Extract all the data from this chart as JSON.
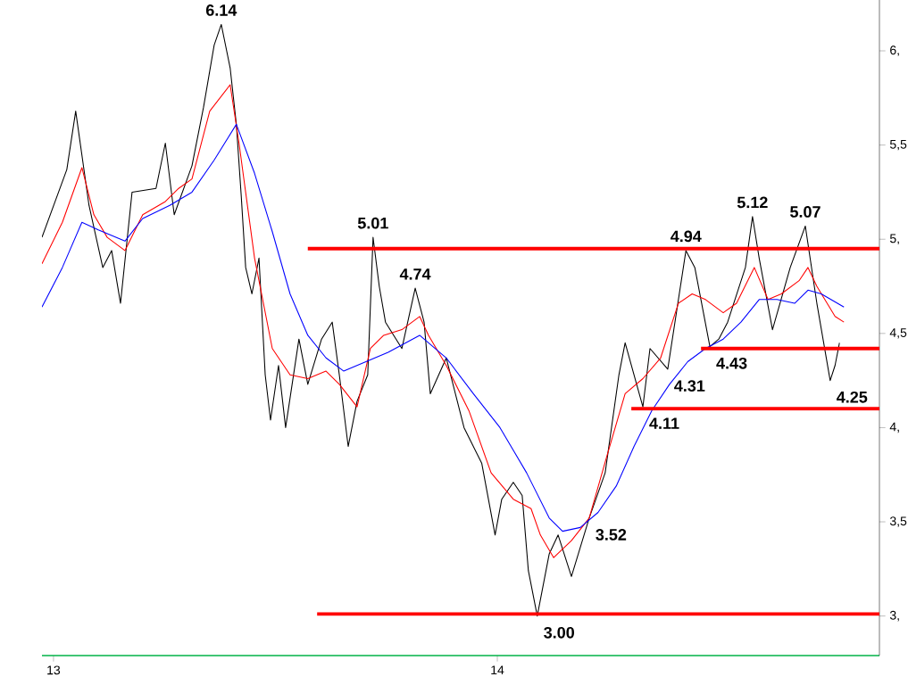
{
  "chart_data": {
    "type": "line",
    "xlim": [
      12.974,
      14.861
    ],
    "ylim": [
      2.79,
      6.27
    ],
    "xticks": [
      13,
      14
    ],
    "yticks": [
      {
        "value": 3,
        "label": "3,"
      },
      {
        "value": 3.5,
        "label": "3,5"
      },
      {
        "value": 4,
        "label": "4,"
      },
      {
        "value": 4.5,
        "label": "4,5"
      },
      {
        "value": 5,
        "label": "5,"
      },
      {
        "value": 5.5,
        "label": "5,5"
      },
      {
        "value": 6,
        "label": "6,"
      }
    ],
    "grid": false,
    "marker": "none",
    "line_style": "solid",
    "series": [
      {
        "color": "#000000",
        "x": [
          12.974,
          13.03,
          13.05,
          13.08,
          13.111,
          13.131,
          13.151,
          13.177,
          13.231,
          13.252,
          13.272,
          13.312,
          13.338,
          13.362,
          13.378,
          13.398,
          13.412,
          13.423,
          13.433,
          13.447,
          13.463,
          13.477,
          13.489,
          13.507,
          13.523,
          13.553,
          13.573,
          13.604,
          13.628,
          13.644,
          13.664,
          13.684,
          13.708,
          13.72,
          13.734,
          13.748,
          13.785,
          13.815,
          13.835,
          13.849,
          13.885,
          13.925,
          13.965,
          13.995,
          14.01,
          14.036,
          14.056,
          14.07,
          14.09,
          14.117,
          14.137,
          14.167,
          14.207,
          14.243,
          14.274,
          14.288,
          14.328,
          14.344,
          14.384,
          14.425,
          14.445,
          14.479,
          14.499,
          14.519,
          14.559,
          14.575,
          14.59,
          14.62,
          14.66,
          14.694,
          14.72,
          14.75,
          14.761,
          14.771
        ],
        "values": [
          5.01,
          5.37,
          5.68,
          5.18,
          4.85,
          4.94,
          4.66,
          5.25,
          5.27,
          5.51,
          5.13,
          5.39,
          5.7,
          6.03,
          6.14,
          5.91,
          5.61,
          5.23,
          4.85,
          4.71,
          4.9,
          4.28,
          4.04,
          4.33,
          4.0,
          4.47,
          4.23,
          4.47,
          4.56,
          4.28,
          3.9,
          4.14,
          4.28,
          5.01,
          4.75,
          4.56,
          4.42,
          4.74,
          4.56,
          4.18,
          4.37,
          4.0,
          3.81,
          3.43,
          3.62,
          3.71,
          3.64,
          3.24,
          3.0,
          3.33,
          3.43,
          3.21,
          3.52,
          3.76,
          4.28,
          4.45,
          4.11,
          4.42,
          4.31,
          4.94,
          4.85,
          4.43,
          4.47,
          4.56,
          4.85,
          5.12,
          4.9,
          4.52,
          4.85,
          5.07,
          4.66,
          4.25,
          4.33,
          4.45
        ]
      },
      {
        "color": "#ff0000",
        "x": [
          12.974,
          13.02,
          13.064,
          13.091,
          13.121,
          13.161,
          13.201,
          13.252,
          13.282,
          13.312,
          13.352,
          13.398,
          13.418,
          13.453,
          13.493,
          13.533,
          13.573,
          13.614,
          13.644,
          13.684,
          13.714,
          13.744,
          13.785,
          13.825,
          13.845,
          13.885,
          13.936,
          13.986,
          14.036,
          14.076,
          14.097,
          14.127,
          14.167,
          14.207,
          14.247,
          14.288,
          14.328,
          14.368,
          14.408,
          14.439,
          14.469,
          14.509,
          14.539,
          14.579,
          14.61,
          14.64,
          14.68,
          14.7,
          14.72,
          14.761,
          14.781
        ],
        "values": [
          4.87,
          5.09,
          5.38,
          5.13,
          5.01,
          4.94,
          5.13,
          5.2,
          5.27,
          5.32,
          5.68,
          5.82,
          5.51,
          4.9,
          4.42,
          4.28,
          4.26,
          4.3,
          4.23,
          4.11,
          4.42,
          4.49,
          4.52,
          4.59,
          4.49,
          4.33,
          4.09,
          3.76,
          3.62,
          3.57,
          3.43,
          3.31,
          3.4,
          3.52,
          3.85,
          4.18,
          4.26,
          4.37,
          4.66,
          4.71,
          4.68,
          4.61,
          4.66,
          4.85,
          4.68,
          4.71,
          4.78,
          4.85,
          4.75,
          4.59,
          4.56
        ]
      },
      {
        "color": "#0000ff",
        "x": [
          12.974,
          13.02,
          13.064,
          13.101,
          13.161,
          13.201,
          13.262,
          13.312,
          13.362,
          13.412,
          13.453,
          13.493,
          13.533,
          13.573,
          13.614,
          13.654,
          13.704,
          13.754,
          13.825,
          13.885,
          13.946,
          14.006,
          14.066,
          14.117,
          14.147,
          14.187,
          14.227,
          14.268,
          14.308,
          14.348,
          14.388,
          14.429,
          14.469,
          14.509,
          14.549,
          14.59,
          14.63,
          14.67,
          14.7,
          14.73,
          14.781
        ],
        "values": [
          4.64,
          4.85,
          5.09,
          5.05,
          4.99,
          5.11,
          5.18,
          5.25,
          5.42,
          5.61,
          5.35,
          5.04,
          4.71,
          4.49,
          4.37,
          4.3,
          4.35,
          4.4,
          4.49,
          4.37,
          4.18,
          4.0,
          3.76,
          3.52,
          3.45,
          3.47,
          3.55,
          3.69,
          3.9,
          4.09,
          4.23,
          4.35,
          4.42,
          4.47,
          4.56,
          4.68,
          4.68,
          4.66,
          4.73,
          4.71,
          4.64
        ]
      },
      {
        "color": "#ff0000",
        "x": [
          13.573,
          14.861
        ],
        "values": [
          4.95,
          4.95
        ]
      },
      {
        "color": "#ff0000",
        "x": [
          14.459,
          14.861
        ],
        "values": [
          4.42,
          4.42
        ]
      },
      {
        "color": "#ff0000",
        "x": [
          14.302,
          14.861
        ],
        "values": [
          4.1,
          4.1
        ]
      },
      {
        "color": "#ff0000",
        "x": [
          13.594,
          14.861
        ],
        "values": [
          3.01,
          3.01
        ]
      }
    ],
    "annotations": [
      {
        "text": "6.14",
        "x": 13.378,
        "y": 6.14
      },
      {
        "text": "5.01",
        "x": 13.72,
        "y": 5.01
      },
      {
        "text": "4.74",
        "x": 13.815,
        "y": 4.74
      },
      {
        "text": "4.94",
        "x": 14.425,
        "y": 4.94
      },
      {
        "text": "5.12",
        "x": 14.575,
        "y": 5.12
      },
      {
        "text": "5.07",
        "x": 14.694,
        "y": 5.07
      },
      {
        "text": "4.43",
        "x": 14.479,
        "y": 4.43
      },
      {
        "text": "4.31",
        "x": 14.384,
        "y": 4.31
      },
      {
        "text": "4.25",
        "x": 14.75,
        "y": 4.25
      },
      {
        "text": "4.11",
        "x": 14.328,
        "y": 4.11
      },
      {
        "text": "3.52",
        "x": 14.207,
        "y": 3.52
      },
      {
        "text": "3.00",
        "x": 14.09,
        "y": 3.0
      }
    ]
  }
}
